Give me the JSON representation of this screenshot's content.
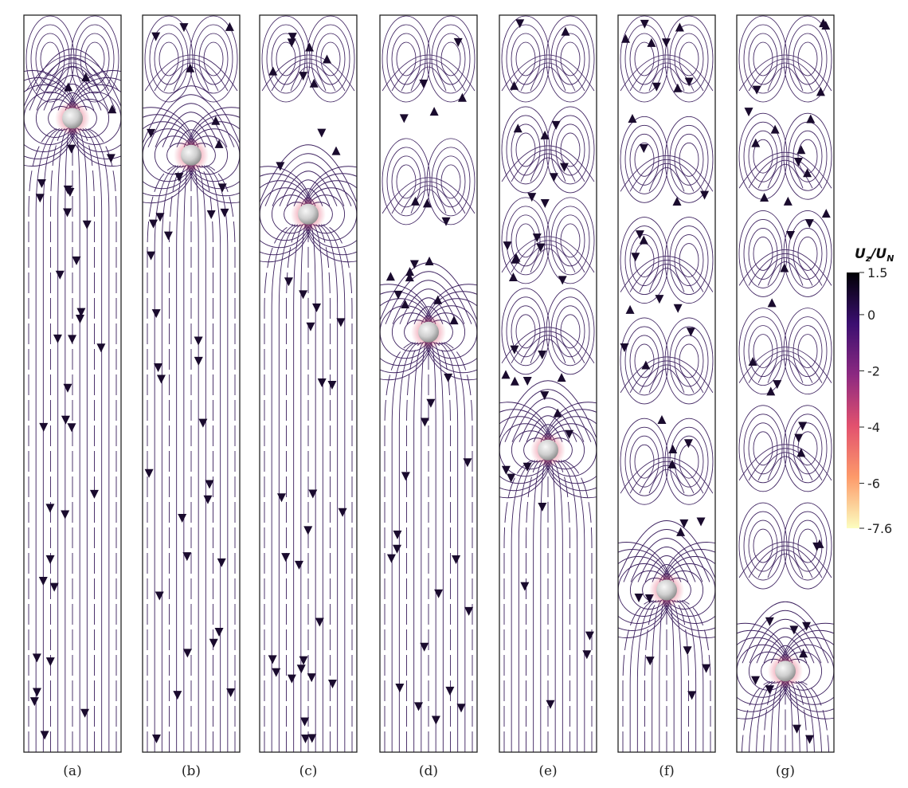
{
  "panels": [
    {
      "label": "(a)",
      "sphere_z": 0.86
    },
    {
      "label": "(b)",
      "sphere_z": 0.81
    },
    {
      "label": "(c)",
      "sphere_z": 0.73
    },
    {
      "label": "(d)",
      "sphere_z": 0.57
    },
    {
      "label": "(e)",
      "sphere_z": 0.41
    },
    {
      "label": "(f)",
      "sphere_z": 0.22
    },
    {
      "label": "(g)",
      "sphere_z": 0.11
    }
  ],
  "colorbar": {
    "title": "U_z/U_N",
    "title_main": "U",
    "title_sub1": "z",
    "title_sep": "/U",
    "title_sub2": "N",
    "ticks": [
      "1.5",
      "0",
      "-2",
      "-4",
      "-6",
      "-7.6"
    ],
    "tick_values": [
      1.5,
      0,
      -2,
      -4,
      -6,
      -7.6
    ],
    "min": -7.6,
    "max": 1.5,
    "colors": [
      "#fcfdbf",
      "#fd9a6a",
      "#e2516e",
      "#8c2981",
      "#3b0f70",
      "#000004"
    ]
  },
  "colors": {
    "streamline": "#3b1f5e",
    "arrow": "#1a0b2e",
    "sphere_highlight": "#f5f5f5",
    "sphere_shadow": "#8a8a8a",
    "frame": "#222222"
  }
}
